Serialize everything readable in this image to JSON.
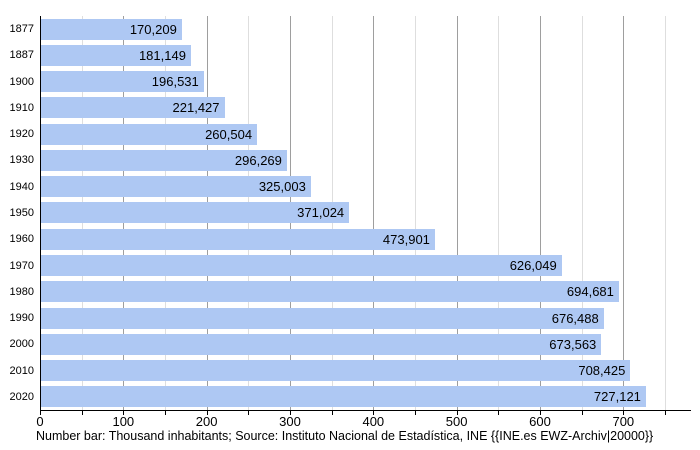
{
  "chart_data": {
    "type": "bar",
    "orientation": "horizontal",
    "title": "",
    "categories": [
      "1877",
      "1887",
      "1900",
      "1910",
      "1920",
      "1930",
      "1940",
      "1950",
      "1960",
      "1970",
      "1980",
      "1990",
      "2000",
      "2010",
      "2020"
    ],
    "values": [
      170209,
      181149,
      196531,
      221427,
      260504,
      296269,
      325003,
      371024,
      473901,
      626049,
      694681,
      676488,
      673563,
      708425,
      727121
    ],
    "value_labels": [
      "170,209",
      "181,149",
      "196,531",
      "221,427",
      "260,504",
      "296,269",
      "325,003",
      "371,024",
      "473,901",
      "626,049",
      "694,681",
      "676,488",
      "673,563",
      "708,425",
      "727,121"
    ],
    "unit": "thousand inhabitants",
    "xlim": [
      0,
      780
    ],
    "x_major_step": 100,
    "x_minor_step": 50,
    "x_tick_labels": [
      "0",
      "100",
      "200",
      "300",
      "400",
      "500",
      "600",
      "700"
    ],
    "grid": true,
    "legend": false,
    "bar_color": "#aec8f3",
    "grid_major_color": "#9e9e9e",
    "grid_minor_color": "#dedede",
    "axis_color": "#000000"
  },
  "caption": "Number bar: Thousand inhabitants; Source: Instituto Nacional de Estadística, INE {{INE.es EWZ-Archiv|20000}}"
}
